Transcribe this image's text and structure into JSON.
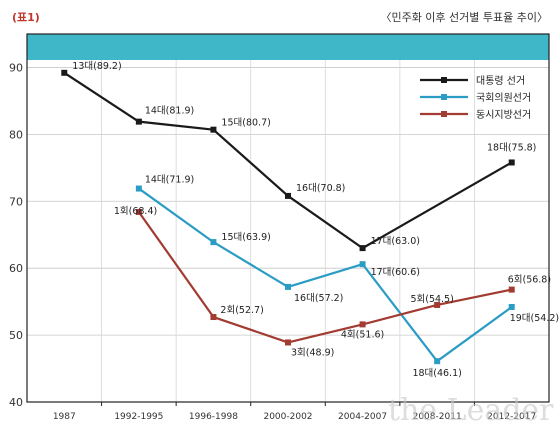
{
  "header": {
    "table_label": "(표1)",
    "title": "〈민주화 이후 선거별 투표율 추이〉"
  },
  "watermark": "the Leader",
  "colors": {
    "band": "#3fb7c8",
    "presidential": "#1a1a1a",
    "assembly": "#2b9cc4",
    "local": "#a23b32",
    "frame": "#222222"
  },
  "chart_data": {
    "type": "line",
    "title": "〈민주화 이후 선거별 투표율 추이〉",
    "categories": [
      "1987",
      "1992-1995",
      "1996-1998",
      "2000-2002",
      "2004-2007",
      "2008-2011",
      "2012-2017"
    ],
    "ylim": [
      40,
      95
    ],
    "yticks": [
      40,
      50,
      60,
      70,
      80,
      90
    ],
    "grid": true,
    "legend_position": "top-right",
    "series": [
      {
        "name": "대통령 선거",
        "color": "#1a1a1a",
        "points": [
          {
            "cat": 0,
            "y": 89.2,
            "label": "13대(89.2)"
          },
          {
            "cat": 1,
            "y": 81.9,
            "label": "14대(81.9)"
          },
          {
            "cat": 2,
            "y": 80.7,
            "label": "15대(80.7)"
          },
          {
            "cat": 3,
            "y": 70.8,
            "label": "16대(70.8)"
          },
          {
            "cat": 4,
            "y": 63.0,
            "label": "17대(63.0)"
          },
          {
            "cat": 6,
            "y": 75.8,
            "label": "18대(75.8)"
          }
        ]
      },
      {
        "name": "국회의원선거",
        "color": "#2b9cc4",
        "points": [
          {
            "cat": 1,
            "y": 71.9,
            "label": "14대(71.9)"
          },
          {
            "cat": 2,
            "y": 63.9,
            "label": "15대(63.9)"
          },
          {
            "cat": 3,
            "y": 57.2,
            "label": "16대(57.2)"
          },
          {
            "cat": 4,
            "y": 60.6,
            "label": "17대(60.6)"
          },
          {
            "cat": 5,
            "y": 46.1,
            "label": "18대(46.1)"
          },
          {
            "cat": 6,
            "y": 54.2,
            "label": "19대(54.2)"
          }
        ]
      },
      {
        "name": "동시지방선거",
        "color": "#a23b32",
        "points": [
          {
            "cat": 1,
            "y": 68.4,
            "label": "1회(68.4)"
          },
          {
            "cat": 2,
            "y": 52.7,
            "label": "2회(52.7)"
          },
          {
            "cat": 3,
            "y": 48.9,
            "label": "3회(48.9)"
          },
          {
            "cat": 4,
            "y": 51.6,
            "label": "4회(51.6)"
          },
          {
            "cat": 5,
            "y": 54.5,
            "label": "5회(54.5)"
          },
          {
            "cat": 6,
            "y": 56.8,
            "label": "6회(56.8)"
          }
        ]
      }
    ]
  }
}
